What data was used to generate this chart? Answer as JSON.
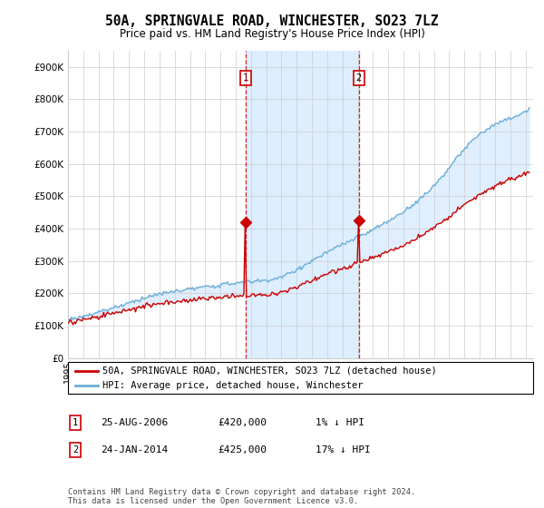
{
  "title": "50A, SPRINGVALE ROAD, WINCHESTER, SO23 7LZ",
  "subtitle": "Price paid vs. HM Land Registry's House Price Index (HPI)",
  "ylabel_ticks": [
    "£0",
    "£100K",
    "£200K",
    "£300K",
    "£400K",
    "£500K",
    "£600K",
    "£700K",
    "£800K",
    "£900K"
  ],
  "ylim": [
    0,
    950000
  ],
  "xlim_start": 1995.0,
  "xlim_end": 2025.5,
  "hpi_color": "#6BAED6",
  "hpi_fill_color": "#DDEEFF",
  "price_color": "#CC0000",
  "marker1_date": 2006.65,
  "marker1_price": 420000,
  "marker2_date": 2014.07,
  "marker2_price": 425000,
  "legend_line1": "50A, SPRINGVALE ROAD, WINCHESTER, SO23 7LZ (detached house)",
  "legend_line2": "HPI: Average price, detached house, Winchester",
  "table_row1_num": "1",
  "table_row1_date": "25-AUG-2006",
  "table_row1_price": "£420,000",
  "table_row1_hpi": "1% ↓ HPI",
  "table_row2_num": "2",
  "table_row2_date": "24-JAN-2014",
  "table_row2_price": "£425,000",
  "table_row2_hpi": "17% ↓ HPI",
  "footnote": "Contains HM Land Registry data © Crown copyright and database right 2024.\nThis data is licensed under the Open Government Licence v3.0.",
  "background_color": "#ffffff",
  "plot_bg_color": "#ffffff",
  "grid_color": "#cccccc"
}
